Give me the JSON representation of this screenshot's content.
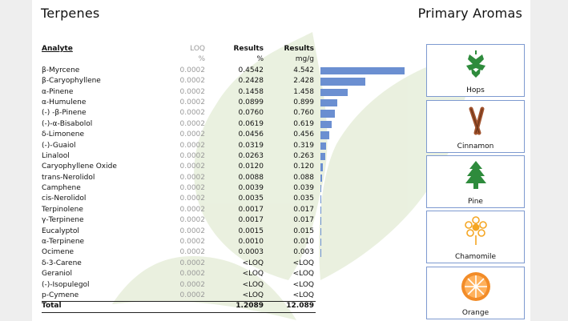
{
  "header": {
    "title": "Terpenes",
    "aromas_title": "Primary Aromas"
  },
  "table": {
    "columns": {
      "analyte": "Analyte",
      "loq": "LOQ",
      "results_pct": "Results",
      "results_mg": "Results"
    },
    "units": {
      "loq": "%",
      "results_pct": "%",
      "results_mg": "mg/g"
    },
    "rows": [
      {
        "analyte": "β-Myrcene",
        "loq": "0.0002",
        "pct": "0.4542",
        "mg": "4.542",
        "value": 4.542
      },
      {
        "analyte": "β-Caryophyllene",
        "loq": "0.0002",
        "pct": "0.2428",
        "mg": "2.428",
        "value": 2.428
      },
      {
        "analyte": "α-Pinene",
        "loq": "0.0002",
        "pct": "0.1458",
        "mg": "1.458",
        "value": 1.458
      },
      {
        "analyte": "α-Humulene",
        "loq": "0.0002",
        "pct": "0.0899",
        "mg": "0.899",
        "value": 0.899
      },
      {
        "analyte": "(-) -β-Pinene",
        "loq": "0.0002",
        "pct": "0.0760",
        "mg": "0.760",
        "value": 0.76
      },
      {
        "analyte": "(-)-α-Bisabolol",
        "loq": "0.0002",
        "pct": "0.0619",
        "mg": "0.619",
        "value": 0.619
      },
      {
        "analyte": "δ-Limonene",
        "loq": "0.0002",
        "pct": "0.0456",
        "mg": "0.456",
        "value": 0.456
      },
      {
        "analyte": "(-)-Guaiol",
        "loq": "0.0002",
        "pct": "0.0319",
        "mg": "0.319",
        "value": 0.319
      },
      {
        "analyte": "Linalool",
        "loq": "0.0002",
        "pct": "0.0263",
        "mg": "0.263",
        "value": 0.263
      },
      {
        "analyte": "Caryophyllene Oxide",
        "loq": "0.0002",
        "pct": "0.0120",
        "mg": "0.120",
        "value": 0.12
      },
      {
        "analyte": "trans-Nerolidol",
        "loq": "0.0002",
        "pct": "0.0088",
        "mg": "0.088",
        "value": 0.088
      },
      {
        "analyte": "Camphene",
        "loq": "0.0002",
        "pct": "0.0039",
        "mg": "0.039",
        "value": 0.039
      },
      {
        "analyte": "cis-Nerolidol",
        "loq": "0.0002",
        "pct": "0.0035",
        "mg": "0.035",
        "value": 0.035
      },
      {
        "analyte": "Terpinolene",
        "loq": "0.0002",
        "pct": "0.0017",
        "mg": "0.017",
        "value": 0.017
      },
      {
        "analyte": "γ-Terpinene",
        "loq": "0.0002",
        "pct": "0.0017",
        "mg": "0.017",
        "value": 0.017
      },
      {
        "analyte": "Eucalyptol",
        "loq": "0.0002",
        "pct": "0.0015",
        "mg": "0.015",
        "value": 0.015
      },
      {
        "analyte": "α-Terpinene",
        "loq": "0.0002",
        "pct": "0.0010",
        "mg": "0.010",
        "value": 0.01
      },
      {
        "analyte": "Ocimene",
        "loq": "0.0002",
        "pct": "0.0003",
        "mg": "0.003",
        "value": 0.003
      },
      {
        "analyte": "δ-3-Carene",
        "loq": "0.0002",
        "pct": "<LOQ",
        "mg": "<LOQ",
        "value": 0
      },
      {
        "analyte": "Geraniol",
        "loq": "0.0002",
        "pct": "<LOQ",
        "mg": "<LOQ",
        "value": 0
      },
      {
        "analyte": "(-)-Isopulegol",
        "loq": "0.0002",
        "pct": "<LOQ",
        "mg": "<LOQ",
        "value": 0
      },
      {
        "analyte": "p-Cymene",
        "loq": "0.0002",
        "pct": "<LOQ",
        "mg": "<LOQ",
        "value": 0
      }
    ],
    "total": {
      "label": "Total",
      "pct": "1.2089",
      "mg": "12.089"
    },
    "bar_color": "#6b8fd1"
  },
  "aromas": [
    {
      "label": "Hops",
      "icon": "hops-icon"
    },
    {
      "label": "Cinnamon",
      "icon": "cinnamon-icon"
    },
    {
      "label": "Pine",
      "icon": "pine-tree-icon"
    },
    {
      "label": "Chamomile",
      "icon": "chamomile-flower-icon"
    },
    {
      "label": "Orange",
      "icon": "orange-slice-icon"
    }
  ],
  "colors": {
    "accent_blue": "#6b8fd1",
    "green": "#2e8b3c",
    "cinnamon": "#a0522d",
    "chamomile": "#f5a623",
    "orange": "#f28c28"
  }
}
